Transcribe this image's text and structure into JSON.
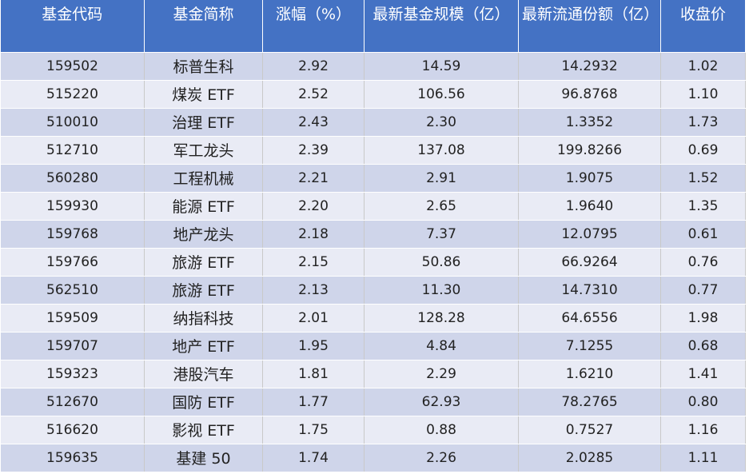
{
  "table": {
    "header": [
      "基金代码",
      "基金简称",
      "涨幅（%）",
      "最新基金规模（亿）",
      "最新流通份额（亿）",
      "收盘价"
    ],
    "rows": [
      [
        "159502",
        "标普生科",
        "2.92",
        "14.59",
        "14.2932",
        "1.02"
      ],
      [
        "515220",
        "煤炭 ETF",
        "2.52",
        "106.56",
        "96.8768",
        "1.10"
      ],
      [
        "510010",
        "治理 ETF",
        "2.43",
        "2.30",
        "1.3352",
        "1.73"
      ],
      [
        "512710",
        "军工龙头",
        "2.39",
        "137.08",
        "199.8266",
        "0.69"
      ],
      [
        "560280",
        "工程机械",
        "2.21",
        "2.91",
        "1.9075",
        "1.52"
      ],
      [
        "159930",
        "能源 ETF",
        "2.20",
        "2.65",
        "1.9640",
        "1.35"
      ],
      [
        "159768",
        "地产龙头",
        "2.18",
        "7.37",
        "12.0795",
        "0.61"
      ],
      [
        "159766",
        "旅游 ETF",
        "2.15",
        "50.86",
        "66.9264",
        "0.76"
      ],
      [
        "562510",
        "旅游 ETF",
        "2.13",
        "11.30",
        "14.7310",
        "0.77"
      ],
      [
        "159509",
        "纳指科技",
        "2.01",
        "128.28",
        "64.6556",
        "1.98"
      ],
      [
        "159707",
        "地产 ETF",
        "1.95",
        "4.84",
        "7.1255",
        "0.68"
      ],
      [
        "159323",
        "港股汽车",
        "1.81",
        "2.29",
        "1.6210",
        "1.41"
      ],
      [
        "512670",
        "国防 ETF",
        "1.77",
        "62.93",
        "78.2765",
        "0.80"
      ],
      [
        "516620",
        "影视 ETF",
        "1.75",
        "0.88",
        "0.7527",
        "1.16"
      ],
      [
        "159635",
        "基建 50",
        "1.74",
        "2.26",
        "2.0285",
        "1.11"
      ]
    ]
  }
}
